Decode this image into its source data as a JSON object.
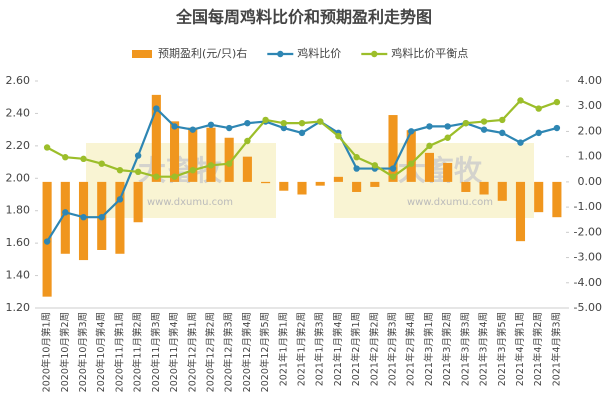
{
  "chart_data": {
    "type": "bar-line",
    "title": "全国每周鸡料比价和预期盈利走势图",
    "watermark": {
      "text": "大畜牧",
      "url": "www.dxumu.com"
    },
    "categories": [
      "2020年10月第1周",
      "2020年10月第2周",
      "2020年10月第3周",
      "2020年10月第4周",
      "2020年11月第1周",
      "2020年11月第2周",
      "2020年11月第3周",
      "2020年11月第4周",
      "2020年12月第1周",
      "2020年12月第2周",
      "2020年12月第3周",
      "2020年12月第4周",
      "2020年12月第5周",
      "2021年1月第1周",
      "2021年1月第2周",
      "2021年1月第3周",
      "2021年1月第4周",
      "2021年2月第1周",
      "2021年2月第2周",
      "2021年2月第3周",
      "2021年2月第4周",
      "2021年3月第1周",
      "2021年3月第2周",
      "2021年3月第3周",
      "2021年3月第4周",
      "2021年3月第5周",
      "2021年4月第1周",
      "2021年4月第2周",
      "2021年4月第3周"
    ],
    "series": [
      {
        "name": "预期盈利(元/只)右",
        "type": "bar",
        "axis": "y2",
        "color": "#f0961e",
        "values": [
          -4.55,
          -2.85,
          -3.1,
          -2.7,
          -2.85,
          -1.6,
          3.45,
          2.4,
          2.15,
          2.15,
          1.75,
          1.0,
          -0.05,
          -0.35,
          -0.5,
          -0.15,
          0.2,
          -0.4,
          -0.2,
          2.65,
          2.05,
          1.15,
          0.75,
          -0.4,
          -0.5,
          -0.75,
          -2.35,
          -1.2,
          -1.4
        ]
      },
      {
        "name": "鸡料比价",
        "type": "line",
        "color": "#2e86b3",
        "values": [
          1.61,
          1.79,
          1.76,
          1.76,
          1.87,
          2.14,
          2.43,
          2.32,
          2.3,
          2.33,
          2.31,
          2.34,
          2.35,
          2.31,
          2.28,
          2.35,
          2.28,
          2.06,
          2.06,
          2.06,
          2.29,
          2.32,
          2.32,
          2.34,
          2.3,
          2.28,
          2.22,
          2.28,
          2.31
        ]
      },
      {
        "name": "鸡料比价平衡点",
        "type": "line",
        "color": "#9cbe2a",
        "values": [
          2.19,
          2.13,
          2.12,
          2.09,
          2.05,
          2.04,
          2.01,
          2.01,
          2.05,
          2.08,
          2.09,
          2.23,
          2.36,
          2.34,
          2.34,
          2.35,
          2.26,
          2.13,
          2.08,
          2.01,
          2.09,
          2.2,
          2.25,
          2.34,
          2.35,
          2.36,
          2.48,
          2.43,
          2.47
        ]
      }
    ],
    "ylim": [
      1.2,
      2.6
    ],
    "yticks": [
      {
        "value": 1.2,
        "label": "1.20"
      },
      {
        "value": 1.4,
        "label": "1.40"
      },
      {
        "value": 1.6,
        "label": "1.60"
      },
      {
        "value": 1.8,
        "label": "1.80"
      },
      {
        "value": 2.0,
        "label": "2.00"
      },
      {
        "value": 2.2,
        "label": "2.20"
      },
      {
        "value": 2.4,
        "label": "2.40"
      },
      {
        "value": 2.6,
        "label": "2.60"
      }
    ],
    "y2lim": [
      -5,
      4
    ],
    "y2ticks": [
      {
        "value": -5,
        "label": "-5.00"
      },
      {
        "value": -4,
        "label": "-4.00"
      },
      {
        "value": -3,
        "label": "-3.00"
      },
      {
        "value": -2,
        "label": "-2.00"
      },
      {
        "value": -1,
        "label": "-1.00"
      },
      {
        "value": 0,
        "label": "0.00"
      },
      {
        "value": 1,
        "label": "1.00"
      },
      {
        "value": 2,
        "label": "2.00"
      },
      {
        "value": 3,
        "label": "3.00"
      },
      {
        "value": 4,
        "label": "4.00"
      }
    ]
  }
}
